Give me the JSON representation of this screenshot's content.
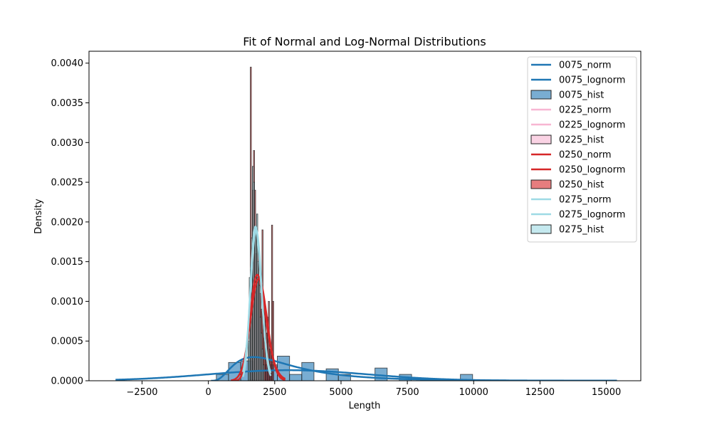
{
  "chart_data": {
    "type": "histogram+line",
    "title": "Fit of Normal and Log-Normal Distributions",
    "xlabel": "Length",
    "ylabel": "Density",
    "xlim": [
      -4500,
      16300
    ],
    "ylim": [
      0,
      0.00415
    ],
    "xticks": [
      -2500,
      0,
      2500,
      5000,
      7500,
      10000,
      12500,
      15000
    ],
    "xtick_labels": [
      "−2500",
      "0",
      "2500",
      "5000",
      "7500",
      "10000",
      "12500",
      "15000"
    ],
    "yticks": [
      0.0,
      0.0005,
      0.001,
      0.0015,
      0.002,
      0.0025,
      0.003,
      0.0035,
      0.004
    ],
    "ytick_labels": [
      "0.0000",
      "0.0005",
      "0.0010",
      "0.0015",
      "0.0020",
      "0.0025",
      "0.0030",
      "0.0035",
      "0.0040"
    ],
    "grid": false,
    "legend_position": "top-right",
    "series": [
      {
        "name": "0075",
        "color": "#1f77b4",
        "fill": "#1f77b4",
        "fill_alpha": 0.6,
        "legend_labels": [
          "0075_norm",
          "0075_lognorm",
          "0075_hist"
        ],
        "hist": {
          "bin_width": 460,
          "bins": [
            [
              300,
              8e-05
            ],
            [
              760,
              0.00023
            ],
            [
              1220,
              0.00025
            ],
            [
              2140,
              0.0002
            ],
            [
              2600,
              0.00031
            ],
            [
              3060,
              8e-05
            ],
            [
              3520,
              0.00023
            ],
            [
              4440,
              0.00015
            ],
            [
              4900,
              8e-05
            ],
            [
              6280,
              0.00016
            ],
            [
              7200,
              8e-05
            ],
            [
              9500,
              8e-05
            ]
          ]
        },
        "norm": {
          "mu": 3000,
          "sigma": 3000,
          "range": [
            -3500,
            15400
          ]
        },
        "lognorm": {
          "mu": 7.85,
          "sigma": 0.64,
          "range": [
            100,
            15400
          ]
        }
      },
      {
        "name": "0225",
        "color": "#f7b6d2",
        "fill": "#f7b6d2",
        "fill_alpha": 0.6,
        "legend_labels": [
          "0225_norm",
          "0225_lognorm",
          "0225_hist"
        ],
        "hist": {
          "bin_width": 40,
          "bins": []
        },
        "norm": null,
        "lognorm": null
      },
      {
        "name": "0250",
        "color": "#d62728",
        "fill": "#d62728",
        "fill_alpha": 0.6,
        "legend_labels": [
          "0250_norm",
          "0250_lognorm",
          "0250_hist"
        ],
        "hist": {
          "bin_width": 40,
          "bins": [
            [
              1580,
              0.00395
            ],
            [
              1620,
              0.0011
            ],
            [
              1660,
              0.0024
            ],
            [
              1700,
              0.0029
            ],
            [
              1740,
              0.0024
            ],
            [
              1780,
              0.0016
            ],
            [
              1820,
              0.0013
            ],
            [
              1860,
              0.0017
            ],
            [
              1900,
              0.0013
            ],
            [
              1940,
              0.0011
            ],
            [
              1980,
              0.0009
            ],
            [
              2020,
              0.0019
            ],
            [
              2060,
              0.001
            ],
            [
              2100,
              0.001
            ],
            [
              2140,
              0.0008
            ],
            [
              2180,
              0.0006
            ],
            [
              2220,
              0.0008
            ],
            [
              2260,
              0.001
            ],
            [
              2300,
              0.0004
            ],
            [
              2340,
              0.0004
            ],
            [
              2380,
              0.00196
            ],
            [
              2420,
              0.001
            ]
          ]
        },
        "norm": {
          "mu": 1900,
          "sigma": 310,
          "range": [
            850,
            2900
          ]
        },
        "lognorm": {
          "mu": 7.545,
          "sigma": 0.16,
          "range": [
            850,
            2900
          ]
        }
      },
      {
        "name": "0275",
        "color": "#9edae5",
        "fill": "#9edae5",
        "fill_alpha": 0.6,
        "legend_labels": [
          "0275_norm",
          "0275_lognorm",
          "0275_hist"
        ],
        "hist": {
          "bin_width": 40,
          "bins": [
            [
              1500,
              0.0005
            ],
            [
              1540,
              0.0013
            ],
            [
              1580,
              0.0014
            ],
            [
              1620,
              0.0018
            ],
            [
              1660,
              0.0027
            ],
            [
              1700,
              0.0025
            ],
            [
              1740,
              0.0019
            ],
            [
              1780,
              0.0019
            ],
            [
              1820,
              0.0021
            ],
            [
              1860,
              0.0015
            ],
            [
              1900,
              0.0012
            ],
            [
              1940,
              0.0008
            ],
            [
              1980,
              0.0006
            ],
            [
              2020,
              0.0004
            ],
            [
              2060,
              0.0002
            ]
          ]
        },
        "norm": {
          "mu": 1800,
          "sigma": 210,
          "range": [
            1300,
            2350
          ]
        },
        "lognorm": {
          "mu": 7.495,
          "sigma": 0.115,
          "range": [
            1300,
            2350
          ]
        }
      }
    ]
  }
}
